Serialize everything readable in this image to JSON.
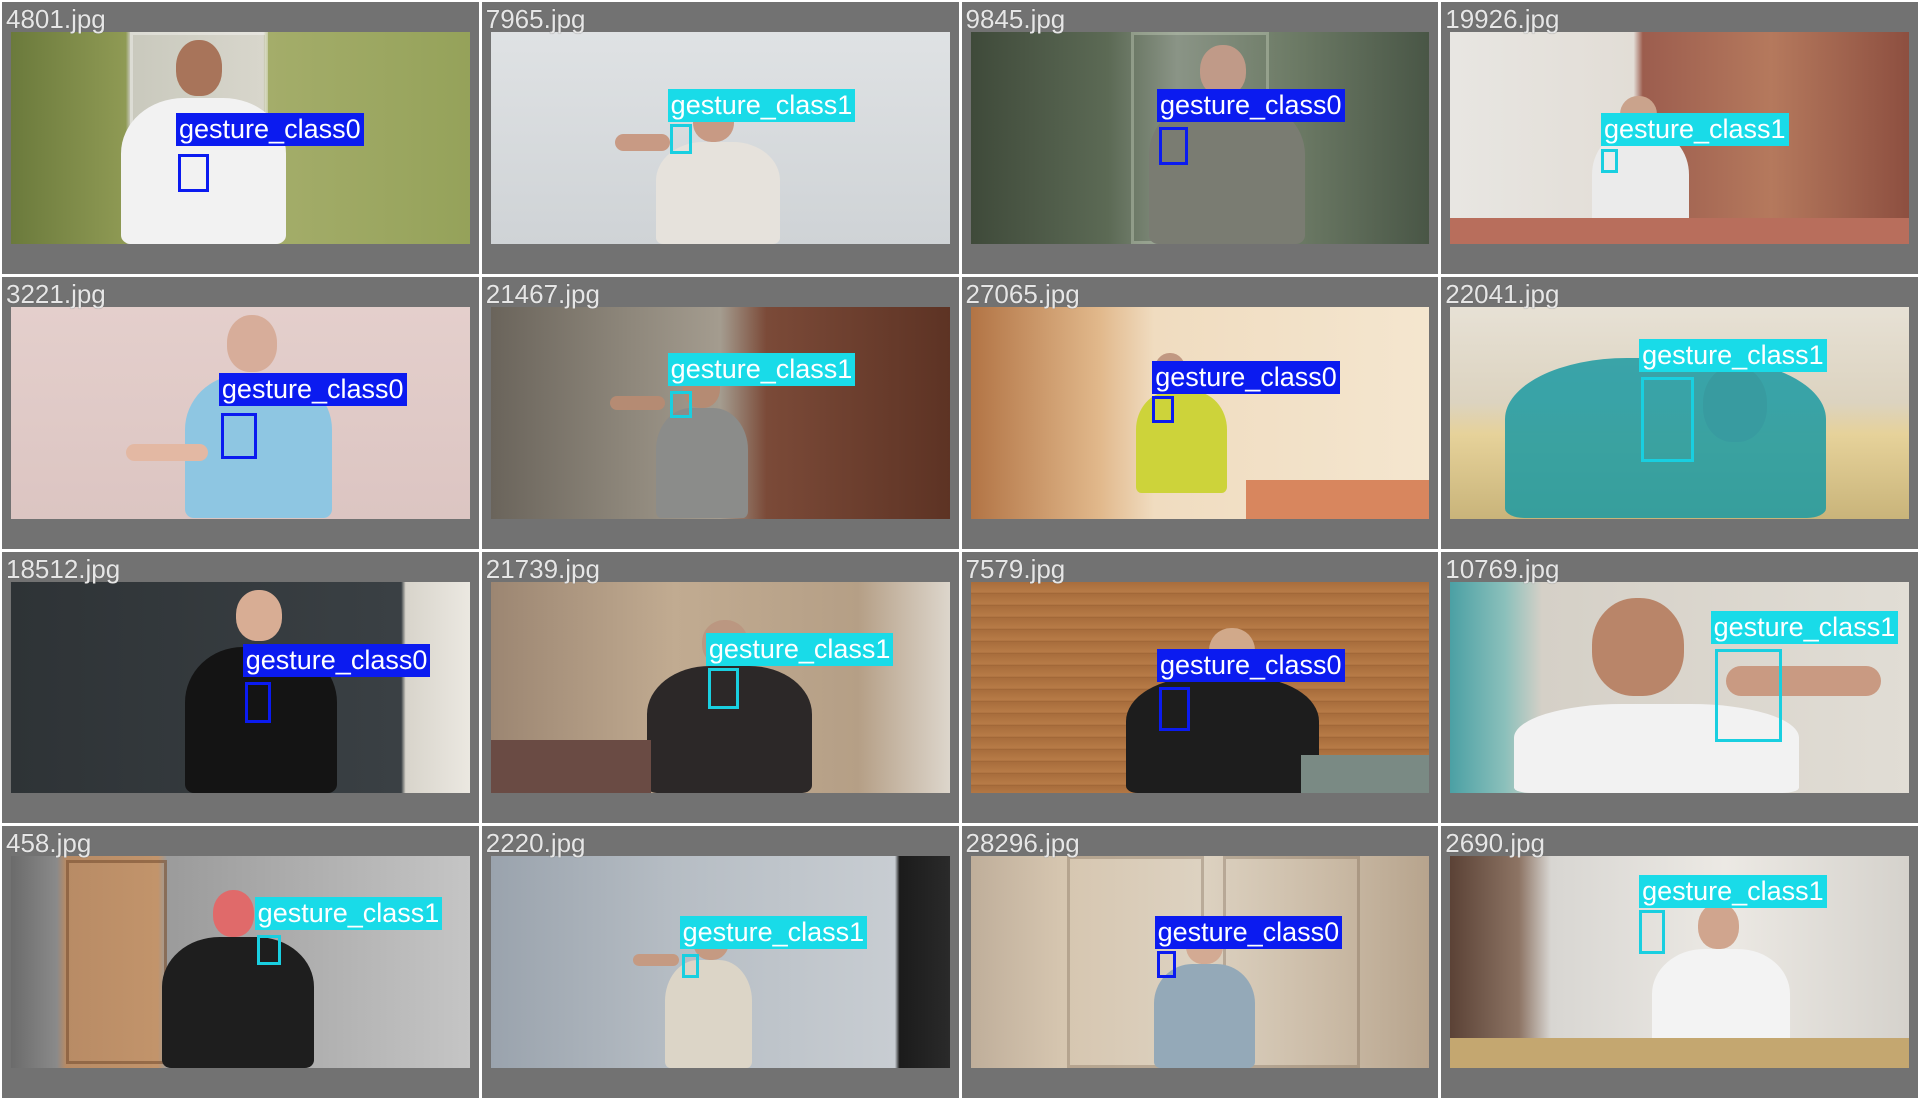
{
  "colors": {
    "class0": "#0b1bf0",
    "class1": "#19dbe8",
    "tile_bg": "#727272"
  },
  "tiles": [
    {
      "file": "4801.jpg",
      "label": "gesture_class0",
      "cls": 0
    },
    {
      "file": "7965.jpg",
      "label": "gesture_class1",
      "cls": 1
    },
    {
      "file": "9845.jpg",
      "label": "gesture_class0",
      "cls": 0
    },
    {
      "file": "19926.jpg",
      "label": "gesture_class1",
      "cls": 1
    },
    {
      "file": "3221.jpg",
      "label": "gesture_class0",
      "cls": 0
    },
    {
      "file": "21467.jpg",
      "label": "gesture_class1",
      "cls": 1
    },
    {
      "file": "27065.jpg",
      "label": "gesture_class0",
      "cls": 0
    },
    {
      "file": "22041.jpg",
      "label": "gesture_class1",
      "cls": 1
    },
    {
      "file": "18512.jpg",
      "label": "gesture_class0",
      "cls": 0
    },
    {
      "file": "21739.jpg",
      "label": "gesture_class1",
      "cls": 1
    },
    {
      "file": "7579.jpg",
      "label": "gesture_class0",
      "cls": 0
    },
    {
      "file": "10769.jpg",
      "label": "gesture_class1",
      "cls": 1
    },
    {
      "file": "458.jpg",
      "label": "gesture_class1",
      "cls": 1
    },
    {
      "file": "2220.jpg",
      "label": "gesture_class1",
      "cls": 1
    },
    {
      "file": "28296.jpg",
      "label": "gesture_class0",
      "cls": 0
    },
    {
      "file": "2690.jpg",
      "label": "gesture_class1",
      "cls": 1
    }
  ]
}
